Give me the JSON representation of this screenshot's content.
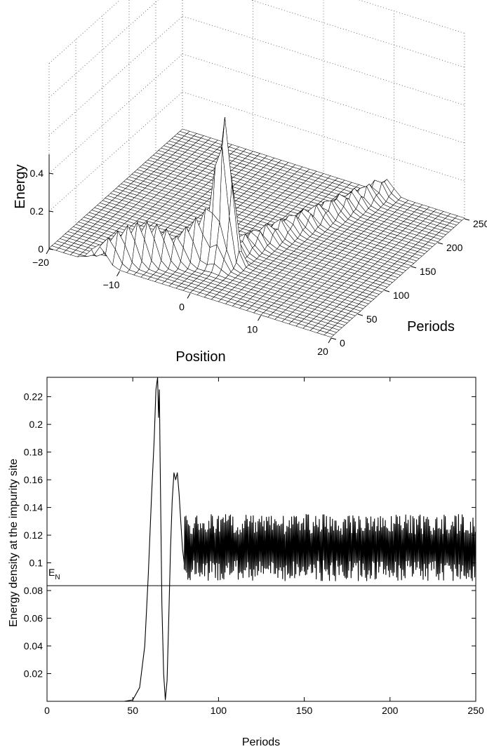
{
  "chart_data": [
    {
      "type": "surface",
      "title": "",
      "xlabel": "Position",
      "ylabel": "Periods",
      "zlabel": "Energy",
      "xlim": [
        -20,
        20
      ],
      "ylim": [
        0,
        250
      ],
      "zlim": [
        0,
        0.5
      ],
      "x_ticks": [
        "−20",
        "−10",
        "0",
        "10",
        "20"
      ],
      "y_ticks": [
        "0",
        "50",
        "100",
        "150",
        "200",
        "250"
      ],
      "z_ticks": [
        "0",
        "0.2",
        "0.4"
      ],
      "grid": true,
      "features": [
        {
          "description_type": "oscillating_breather_moving",
          "x_start": -13,
          "y_start": 0,
          "x_end": 0,
          "y_end": 65,
          "peak_energy": 0.2
        },
        {
          "description_type": "trapped_peak",
          "x": 0,
          "y_from": 50,
          "y_to": 75,
          "peak_energy": 0.5
        },
        {
          "description_type": "reflected_ridge",
          "x_start": 0,
          "y_start": 75,
          "x_end": 20,
          "y_end": 250,
          "peak_energy": 0.1
        }
      ]
    },
    {
      "type": "line",
      "title": "",
      "xlabel": "Periods",
      "ylabel": "Energy density at the impurity site",
      "xlim": [
        0,
        250
      ],
      "ylim": [
        0,
        0.234
      ],
      "x_ticks": [
        "0",
        "50",
        "100",
        "150",
        "200",
        "250"
      ],
      "y_ticks": [
        "0.02",
        "0.04",
        "0.06",
        "0.08",
        "0.1",
        "0.12",
        "0.14",
        "0.16",
        "0.18",
        "0.2",
        "0.22"
      ],
      "grid": false,
      "reference_line": {
        "label": "E",
        "subscript": "N",
        "y": 0.0835
      },
      "series": [
        {
          "x": [
            0,
            45,
            50,
            54,
            57,
            59,
            61,
            62.5,
            63.5,
            64.5,
            65,
            65.5,
            66,
            66.5,
            67,
            68,
            69,
            70,
            71,
            72,
            73,
            74,
            75,
            76,
            77,
            78,
            79,
            80,
            82,
            85,
            90,
            95,
            100,
            110,
            120,
            130,
            140,
            150,
            160,
            170,
            180,
            190,
            200,
            210,
            220,
            230,
            240,
            250
          ],
          "y": [
            0,
            0,
            0.001,
            0.01,
            0.04,
            0.09,
            0.15,
            0.19,
            0.225,
            0.234,
            0.205,
            0.225,
            0.17,
            0.12,
            0.07,
            0.02,
            0.001,
            0.015,
            0.06,
            0.11,
            0.145,
            0.165,
            0.16,
            0.165,
            0.15,
            0.13,
            0.11,
            0.1,
            0.11,
            0.115,
            0.11,
            0.115,
            0.11,
            0.112,
            0.11,
            0.113,
            0.111,
            0.112,
            0.11,
            0.113,
            0.112,
            0.11,
            0.112,
            0.111,
            0.113,
            0.112,
            0.11,
            0.112
          ],
          "oscillation_band_after_x80": [
            0.087,
            0.135
          ]
        }
      ]
    }
  ]
}
